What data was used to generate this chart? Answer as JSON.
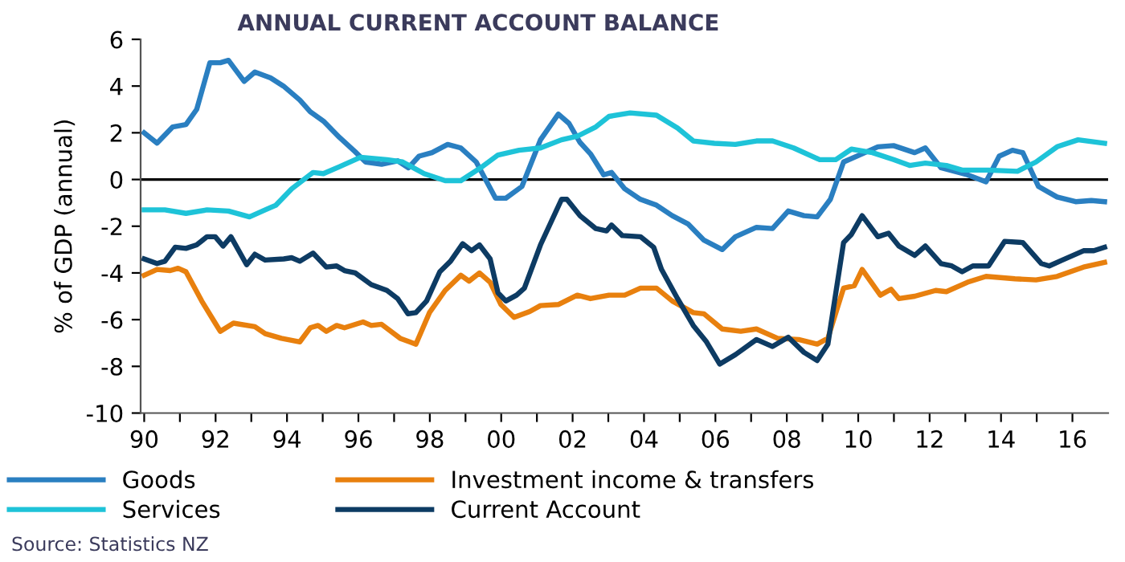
{
  "chart_data": {
    "type": "line",
    "title": "ANNUAL CURRENT ACCOUNT BALANCE",
    "ylabel": "% of GDP (annual)",
    "annotations": [
      "Source: Statistics NZ"
    ],
    "xlim": [
      1989.9,
      2017
    ],
    "ylim": [
      -10,
      6
    ],
    "yticks": [
      -10,
      -8,
      -6,
      -4,
      -2,
      0,
      2,
      4,
      6
    ],
    "xticks": [
      {
        "value": 1990,
        "label": "90"
      },
      {
        "value": 1991,
        "label": null
      },
      {
        "value": 1992,
        "label": "92"
      },
      {
        "value": 1993,
        "label": null
      },
      {
        "value": 1994,
        "label": "94"
      },
      {
        "value": 1995,
        "label": null
      },
      {
        "value": 1996,
        "label": "96"
      },
      {
        "value": 1997,
        "label": null
      },
      {
        "value": 1998,
        "label": "98"
      },
      {
        "value": 1999,
        "label": null
      },
      {
        "value": 2000,
        "label": "00"
      },
      {
        "value": 2001,
        "label": null
      },
      {
        "value": 2002,
        "label": "02"
      },
      {
        "value": 2003,
        "label": null
      },
      {
        "value": 2004,
        "label": "04"
      },
      {
        "value": 2005,
        "label": null
      },
      {
        "value": 2006,
        "label": "06"
      },
      {
        "value": 2007,
        "label": null
      },
      {
        "value": 2008,
        "label": "08"
      },
      {
        "value": 2009,
        "label": null
      },
      {
        "value": 2010,
        "label": "10"
      },
      {
        "value": 2011,
        "label": null
      },
      {
        "value": 2012,
        "label": "12"
      },
      {
        "value": 2013,
        "label": null
      },
      {
        "value": 2014,
        "label": "14"
      },
      {
        "value": 2015,
        "label": null
      },
      {
        "value": 2016,
        "label": "16"
      }
    ],
    "grid": false,
    "legend": "bottom",
    "marker": "none",
    "line_style": "solid",
    "ref_lines": [
      {
        "axis": "y",
        "value": 0,
        "color": "#000000"
      }
    ],
    "series": [
      {
        "name": "Goods",
        "color": "#2a7fc1",
        "x": [
          1990.0,
          1990.36,
          1990.8,
          1991.17,
          1991.47,
          1991.84,
          1992.13,
          1992.36,
          1992.8,
          1993.1,
          1993.54,
          1993.9,
          1994.36,
          1994.65,
          1995.02,
          1995.47,
          1995.9,
          1996.2,
          1996.65,
          1997.1,
          1997.4,
          1997.7,
          1998.06,
          1998.5,
          1998.87,
          1999.3,
          1999.84,
          2000.13,
          2000.58,
          2001.1,
          2001.6,
          2001.9,
          2002.2,
          2002.5,
          2002.87,
          2003.09,
          2003.46,
          2003.9,
          2004.35,
          2004.79,
          2005.23,
          2005.68,
          2006.19,
          2006.56,
          2007.15,
          2007.6,
          2008.04,
          2008.48,
          2008.85,
          2009.22,
          2009.59,
          2010.11,
          2010.55,
          2010.99,
          2011.58,
          2011.88,
          2012.32,
          2013.06,
          2013.58,
          2013.95,
          2014.32,
          2014.61,
          2015.05,
          2015.57,
          2016.09,
          2016.53,
          2016.9
        ],
        "values": [
          2.0,
          1.56,
          2.25,
          2.35,
          3.0,
          5.0,
          5.0,
          5.1,
          4.2,
          4.6,
          4.35,
          4.0,
          3.4,
          2.9,
          2.5,
          1.8,
          1.2,
          0.75,
          0.65,
          0.8,
          0.5,
          1.0,
          1.15,
          1.5,
          1.35,
          0.75,
          -0.8,
          -0.8,
          -0.3,
          1.7,
          2.8,
          2.4,
          1.6,
          1.1,
          0.2,
          0.3,
          -0.4,
          -0.85,
          -1.1,
          -1.55,
          -1.9,
          -2.6,
          -3.0,
          -2.45,
          -2.05,
          -2.1,
          -1.35,
          -1.55,
          -1.6,
          -0.85,
          0.75,
          1.1,
          1.4,
          1.45,
          1.15,
          1.35,
          0.5,
          0.2,
          -0.1,
          1.0,
          1.25,
          1.15,
          -0.3,
          -0.75,
          -0.95,
          -0.9,
          -0.95
        ]
      },
      {
        "name": "Services",
        "color": "#1ec3d8",
        "x": [
          1990.0,
          1990.58,
          1991.17,
          1991.76,
          1992.36,
          1992.95,
          1993.39,
          1993.69,
          1994.13,
          1994.73,
          1995.02,
          1995.47,
          1996.06,
          1996.8,
          1997.24,
          1997.84,
          1998.43,
          1998.87,
          1999.47,
          1999.91,
          2000.5,
          2001.1,
          2001.69,
          2002.13,
          2002.65,
          2003.02,
          2003.61,
          2004.35,
          2004.94,
          2005.38,
          2005.97,
          2006.56,
          2007.15,
          2007.6,
          2008.19,
          2008.92,
          2009.37,
          2009.81,
          2010.4,
          2010.99,
          2011.44,
          2011.88,
          2012.47,
          2012.91,
          2013.65,
          2014.46,
          2014.98,
          2015.57,
          2016.16,
          2016.9
        ],
        "values": [
          -1.3,
          -1.3,
          -1.45,
          -1.3,
          -1.35,
          -1.6,
          -1.3,
          -1.1,
          -0.4,
          0.3,
          0.25,
          0.55,
          0.95,
          0.85,
          0.75,
          0.25,
          -0.05,
          -0.05,
          0.55,
          1.05,
          1.25,
          1.35,
          1.7,
          1.85,
          2.25,
          2.7,
          2.85,
          2.75,
          2.2,
          1.65,
          1.55,
          1.5,
          1.65,
          1.65,
          1.35,
          0.85,
          0.85,
          1.3,
          1.15,
          0.85,
          0.6,
          0.7,
          0.6,
          0.4,
          0.4,
          0.35,
          0.75,
          1.4,
          1.7,
          1.55
        ]
      },
      {
        "name": "Investment income & transfers",
        "color": "#e8800e",
        "x": [
          1990.0,
          1990.36,
          1990.73,
          1990.95,
          1991.17,
          1991.61,
          1991.99,
          1992.13,
          1992.5,
          1993.1,
          1993.39,
          1993.84,
          1994.36,
          1994.65,
          1994.87,
          1995.1,
          1995.39,
          1995.61,
          1996.13,
          1996.36,
          1996.65,
          1997.17,
          1997.61,
          1997.99,
          1998.43,
          1998.87,
          1999.1,
          1999.39,
          1999.69,
          1999.99,
          2000.36,
          2000.8,
          2001.1,
          2001.61,
          2002.13,
          2002.5,
          2003.02,
          2003.46,
          2003.9,
          2004.35,
          2004.79,
          2005.38,
          2005.68,
          2006.19,
          2006.71,
          2007.15,
          2007.74,
          2008.33,
          2008.85,
          2009.15,
          2009.59,
          2009.89,
          2010.11,
          2010.62,
          2010.92,
          2011.14,
          2011.58,
          2012.17,
          2012.47,
          2013.06,
          2013.58,
          2014.39,
          2014.98,
          2015.57,
          2016.31,
          2016.9
        ],
        "values": [
          -4.1,
          -3.85,
          -3.9,
          -3.8,
          -3.95,
          -5.2,
          -6.15,
          -6.5,
          -6.15,
          -6.3,
          -6.6,
          -6.8,
          -6.95,
          -6.35,
          -6.25,
          -6.5,
          -6.25,
          -6.35,
          -6.1,
          -6.25,
          -6.2,
          -6.8,
          -7.05,
          -5.7,
          -4.75,
          -4.1,
          -4.35,
          -4.0,
          -4.4,
          -5.35,
          -5.9,
          -5.65,
          -5.4,
          -5.35,
          -4.95,
          -5.1,
          -4.95,
          -4.95,
          -4.65,
          -4.65,
          -5.2,
          -5.7,
          -5.75,
          -6.4,
          -6.5,
          -6.4,
          -6.8,
          -6.85,
          -7.05,
          -6.8,
          -4.65,
          -4.55,
          -3.85,
          -4.95,
          -4.7,
          -5.1,
          -5.0,
          -4.75,
          -4.8,
          -4.4,
          -4.15,
          -4.25,
          -4.3,
          -4.15,
          -3.75,
          -3.55
        ]
      },
      {
        "name": "Current Account",
        "color": "#0d3b63",
        "x": [
          1990.0,
          1990.36,
          1990.58,
          1990.87,
          1991.17,
          1991.47,
          1991.76,
          1991.99,
          1992.21,
          1992.43,
          1992.87,
          1993.1,
          1993.39,
          1993.91,
          1994.13,
          1994.36,
          1994.73,
          1995.1,
          1995.39,
          1995.61,
          1995.91,
          1996.36,
          1996.8,
          1997.1,
          1997.39,
          1997.61,
          1997.91,
          1998.28,
          1998.58,
          1998.92,
          1999.17,
          1999.39,
          1999.69,
          1999.91,
          2000.13,
          2000.43,
          2000.65,
          2001.1,
          2001.69,
          2001.84,
          2002.21,
          2002.65,
          2002.95,
          2003.09,
          2003.39,
          2003.9,
          2004.27,
          2004.49,
          2004.94,
          2005.38,
          2005.75,
          2006.12,
          2006.56,
          2007.15,
          2007.6,
          2008.04,
          2008.48,
          2008.85,
          2009.15,
          2009.59,
          2009.81,
          2010.11,
          2010.55,
          2010.85,
          2011.14,
          2011.58,
          2011.88,
          2012.32,
          2012.62,
          2012.91,
          2013.21,
          2013.65,
          2014.1,
          2014.61,
          2015.13,
          2015.35,
          2015.72,
          2016.31,
          2016.6,
          2016.9
        ],
        "values": [
          -3.4,
          -3.6,
          -3.5,
          -2.9,
          -2.95,
          -2.8,
          -2.45,
          -2.45,
          -2.85,
          -2.45,
          -3.65,
          -3.2,
          -3.45,
          -3.4,
          -3.35,
          -3.5,
          -3.15,
          -3.75,
          -3.7,
          -3.9,
          -4.0,
          -4.5,
          -4.75,
          -5.1,
          -5.75,
          -5.7,
          -5.2,
          -3.95,
          -3.5,
          -2.75,
          -3.05,
          -2.8,
          -3.4,
          -4.85,
          -5.2,
          -4.95,
          -4.65,
          -2.8,
          -0.85,
          -0.85,
          -1.55,
          -2.1,
          -2.2,
          -1.95,
          -2.4,
          -2.45,
          -2.9,
          -3.85,
          -5.1,
          -6.25,
          -6.95,
          -7.9,
          -7.5,
          -6.85,
          -7.15,
          -6.75,
          -7.4,
          -7.75,
          -7.05,
          -2.7,
          -2.35,
          -1.55,
          -2.45,
          -2.3,
          -2.85,
          -3.25,
          -2.85,
          -3.6,
          -3.7,
          -3.95,
          -3.7,
          -3.7,
          -2.65,
          -2.7,
          -3.6,
          -3.7,
          -3.45,
          -3.05,
          -3.05,
          -2.9
        ]
      }
    ]
  }
}
